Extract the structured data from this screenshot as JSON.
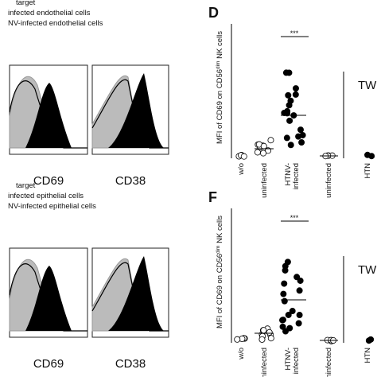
{
  "top": {
    "legend": [
      "target",
      "infected endothelial cells",
      "NV-infected endothelial cells"
    ],
    "markers": [
      "CD69",
      "CD38"
    ]
  },
  "bottom": {
    "legend": [
      "target",
      "infected epithelial cells",
      "NV-infected epithelial cells"
    ],
    "markers": [
      "CD69",
      "CD38"
    ]
  },
  "panel_d": {
    "label": "D",
    "y_label": [
      "MFI of CD69 on CD56",
      "dim",
      " NK cells"
    ],
    "categories": [
      "w/o",
      "uninfected",
      "HTNV-",
      "infected",
      "uninfected",
      "HTN"
    ],
    "significance": "***",
    "group": "TW"
  },
  "panel_f": {
    "label": "F",
    "y_label": [
      "MFI of CD69 on CD56",
      "dim",
      " NK cells"
    ],
    "categories": [
      "w/o",
      "uninfected",
      "HTNV-",
      "infected",
      "uninfected",
      "HTN"
    ],
    "significance": "***",
    "group": "TW"
  }
}
